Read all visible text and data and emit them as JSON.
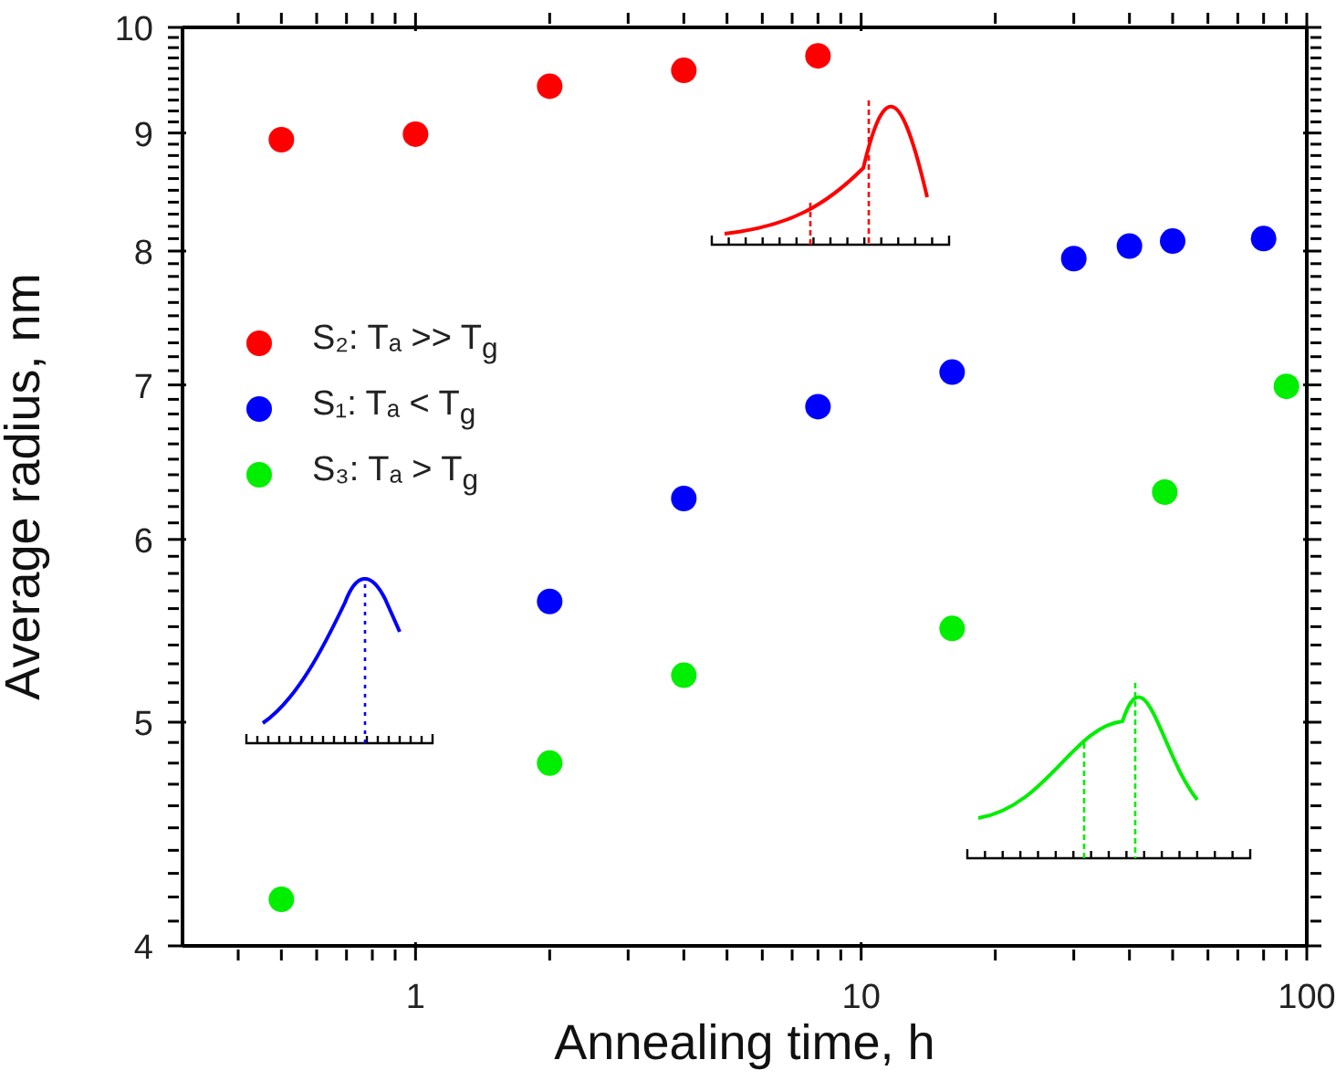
{
  "chart_data": {
    "type": "scatter",
    "xlabel": "Annealing time, h",
    "ylabel": "Average radius, nm",
    "log": "xy",
    "xlim": [
      0.3,
      100
    ],
    "ylim": [
      4,
      10
    ],
    "xticks": [
      {
        "value": 0.4,
        "label": null
      },
      {
        "value": 0.5,
        "label": null
      },
      {
        "value": 0.6,
        "label": null
      },
      {
        "value": 0.7,
        "label": null
      },
      {
        "value": 0.8,
        "label": null
      },
      {
        "value": 0.9,
        "label": null
      },
      1,
      {
        "value": 2,
        "label": null
      },
      {
        "value": 3,
        "label": null
      },
      {
        "value": 4,
        "label": null
      },
      {
        "value": 5,
        "label": null
      },
      {
        "value": 6,
        "label": null
      },
      {
        "value": 7,
        "label": null
      },
      {
        "value": 8,
        "label": null
      },
      {
        "value": 9,
        "label": null
      },
      10,
      {
        "value": 20,
        "label": null
      },
      {
        "value": 30,
        "label": null
      },
      {
        "value": 40,
        "label": null
      },
      {
        "value": 50,
        "label": null
      },
      {
        "value": 60,
        "label": null
      },
      {
        "value": 70,
        "label": null
      },
      {
        "value": 80,
        "label": null
      },
      {
        "value": 90,
        "label": null
      },
      100
    ],
    "yticks": [
      4,
      {
        "value": 4.1,
        "label": null
      },
      {
        "value": 4.2,
        "label": null
      },
      {
        "value": 4.3,
        "label": null
      },
      {
        "value": 4.4,
        "label": null
      },
      {
        "value": 4.5,
        "label": null
      },
      {
        "value": 4.6,
        "label": null
      },
      {
        "value": 4.7,
        "label": null
      },
      {
        "value": 4.8,
        "label": null
      },
      {
        "value": 4.9,
        "label": null
      },
      5,
      {
        "value": 5.1,
        "label": null
      },
      {
        "value": 5.2,
        "label": null
      },
      {
        "value": 5.3,
        "label": null
      },
      {
        "value": 5.4,
        "label": null
      },
      {
        "value": 5.5,
        "label": null
      },
      {
        "value": 5.6,
        "label": null
      },
      {
        "value": 5.7,
        "label": null
      },
      {
        "value": 5.8,
        "label": null
      },
      {
        "value": 5.9,
        "label": null
      },
      6,
      {
        "value": 6.1,
        "label": null
      },
      {
        "value": 6.2,
        "label": null
      },
      {
        "value": 6.3,
        "label": null
      },
      {
        "value": 6.4,
        "label": null
      },
      {
        "value": 6.5,
        "label": null
      },
      {
        "value": 6.6,
        "label": null
      },
      {
        "value": 6.7,
        "label": null
      },
      {
        "value": 6.8,
        "label": null
      },
      {
        "value": 6.9,
        "label": null
      },
      7,
      {
        "value": 7.1,
        "label": null
      },
      {
        "value": 7.2,
        "label": null
      },
      {
        "value": 7.3,
        "label": null
      },
      {
        "value": 7.4,
        "label": null
      },
      {
        "value": 7.5,
        "label": null
      },
      {
        "value": 7.6,
        "label": null
      },
      {
        "value": 7.7,
        "label": null
      },
      {
        "value": 7.8,
        "label": null
      },
      {
        "value": 7.9,
        "label": null
      },
      8,
      {
        "value": 8.1,
        "label": null
      },
      {
        "value": 8.2,
        "label": null
      },
      {
        "value": 8.3,
        "label": null
      },
      {
        "value": 8.4,
        "label": null
      },
      {
        "value": 8.5,
        "label": null
      },
      {
        "value": 8.6,
        "label": null
      },
      {
        "value": 8.7,
        "label": null
      },
      {
        "value": 8.8,
        "label": null
      },
      {
        "value": 8.9,
        "label": null
      },
      9,
      {
        "value": 9.1,
        "label": null
      },
      {
        "value": 9.2,
        "label": null
      },
      {
        "value": 9.3,
        "label": null
      },
      {
        "value": 9.4,
        "label": null
      },
      {
        "value": 9.5,
        "label": null
      },
      {
        "value": 9.6,
        "label": null
      },
      {
        "value": 9.7,
        "label": null
      },
      {
        "value": 9.8,
        "label": null
      },
      {
        "value": 9.9,
        "label": null
      },
      10
    ],
    "marker": "circle",
    "legend": "left",
    "series": [
      {
        "name": "S₂: Tₐ >> T$_{g}$",
        "color": "#ff0000",
        "x": [
          0.5,
          1,
          2,
          4,
          8
        ],
        "values": [
          8.94,
          8.99,
          9.43,
          9.58,
          9.72
        ]
      },
      {
        "name": "S₁: Tₐ < T$_{g}$",
        "color": "#0000ff",
        "x": [
          2,
          4,
          8,
          16,
          30,
          40,
          50,
          80
        ],
        "values": [
          5.64,
          6.25,
          6.85,
          7.09,
          7.94,
          8.04,
          8.08,
          8.1
        ]
      },
      {
        "name": "S₃: Tₐ > T$_{g}$",
        "color": "#00ee00",
        "x": [
          0.5,
          2,
          4,
          16,
          48,
          90
        ],
        "values": [
          4.19,
          4.8,
          5.24,
          5.49,
          6.29,
          6.99
        ]
      }
    ]
  }
}
